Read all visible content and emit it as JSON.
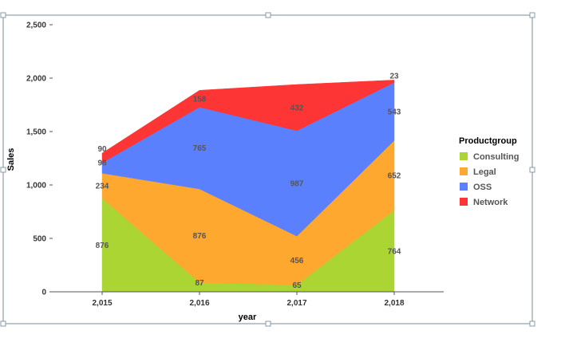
{
  "chart_data": {
    "type": "area",
    "stacked": true,
    "x": [
      "2,015",
      "2,016",
      "2,017",
      "2,018"
    ],
    "xlabel": "year",
    "ylabel": "Sales",
    "ylim": [
      0,
      2500
    ],
    "yticks": [
      "0",
      "500",
      "1,000",
      "1,500",
      "2,000",
      "2,500"
    ],
    "ytick_values": [
      0,
      500,
      1000,
      1500,
      2000,
      2500
    ],
    "legend_title": "Productgroup",
    "legend_position": "right",
    "series": [
      {
        "name": "Consulting",
        "color": "#aad532",
        "values": [
          876,
          87,
          65,
          764
        ]
      },
      {
        "name": "Legal",
        "color": "#fea82f",
        "values": [
          234,
          876,
          456,
          652
        ]
      },
      {
        "name": "OSS",
        "color": "#5b80fe",
        "values": [
          98,
          765,
          987,
          543
        ]
      },
      {
        "name": "Network",
        "color": "#fe3535",
        "values": [
          90,
          158,
          432,
          23
        ]
      }
    ],
    "data_labels": [
      [
        "876",
        "87",
        "65",
        "764"
      ],
      [
        "234",
        "876",
        "456",
        "652"
      ],
      [
        "98",
        "765",
        "987",
        "543"
      ],
      [
        "90",
        "158",
        "432",
        "23"
      ]
    ]
  }
}
